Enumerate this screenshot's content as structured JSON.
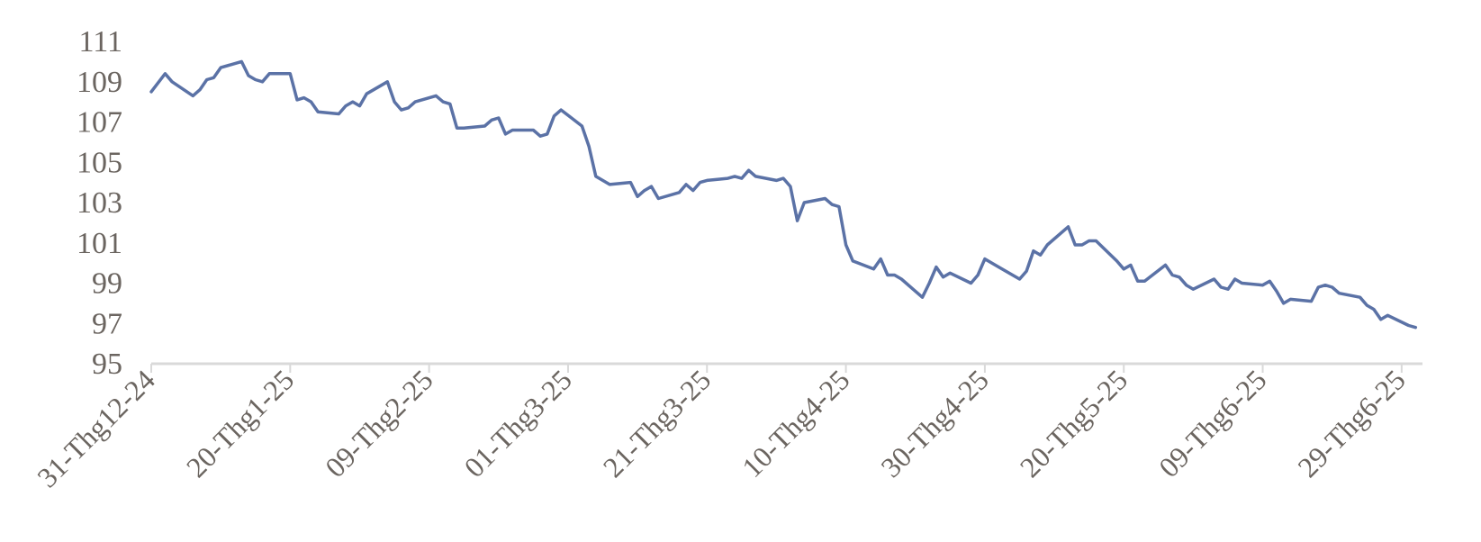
{
  "chart_data": {
    "type": "line",
    "title": "",
    "xlabel": "",
    "ylabel": "",
    "ylim": [
      95,
      111
    ],
    "y_ticks": [
      95,
      97,
      99,
      101,
      103,
      105,
      107,
      109,
      111
    ],
    "x_range": [
      "2024-12-31",
      "2025-07-02"
    ],
    "x_tick_dates": [
      "2024-12-31",
      "2025-01-20",
      "2025-02-09",
      "2025-03-01",
      "2025-03-21",
      "2025-04-10",
      "2025-04-30",
      "2025-05-20",
      "2025-06-09",
      "2025-06-29"
    ],
    "x_tick_labels": [
      "31-Thg12-24",
      "20-Thg1-25",
      "09-Thg2-25",
      "01-Thg3-25",
      "21-Thg3-25",
      "10-Thg4-25",
      "30-Thg4-25",
      "20-Thg5-25",
      "09-Thg6-25",
      "29-Thg6-25"
    ],
    "grid": false,
    "colors": {
      "line": "#5b72a6",
      "axis": "#d9d9d9",
      "text": "#6b6560"
    },
    "series": [
      {
        "x": [
          "2024-12-31",
          "2025-01-02",
          "2025-01-03",
          "2025-01-06",
          "2025-01-07",
          "2025-01-08",
          "2025-01-09",
          "2025-01-10",
          "2025-01-13",
          "2025-01-14",
          "2025-01-15",
          "2025-01-16",
          "2025-01-17",
          "2025-01-20",
          "2025-01-21",
          "2025-01-22",
          "2025-01-23",
          "2025-01-24",
          "2025-01-27",
          "2025-01-28",
          "2025-01-29",
          "2025-01-30",
          "2025-01-31",
          "2025-02-03",
          "2025-02-04",
          "2025-02-05",
          "2025-02-06",
          "2025-02-07",
          "2025-02-10",
          "2025-02-11",
          "2025-02-12",
          "2025-02-13",
          "2025-02-14",
          "2025-02-17",
          "2025-02-18",
          "2025-02-19",
          "2025-02-20",
          "2025-02-21",
          "2025-02-24",
          "2025-02-25",
          "2025-02-26",
          "2025-02-27",
          "2025-02-28",
          "2025-03-03",
          "2025-03-04",
          "2025-03-05",
          "2025-03-06",
          "2025-03-07",
          "2025-03-10",
          "2025-03-11",
          "2025-03-12",
          "2025-03-13",
          "2025-03-14",
          "2025-03-17",
          "2025-03-18",
          "2025-03-19",
          "2025-03-20",
          "2025-03-21",
          "2025-03-24",
          "2025-03-25",
          "2025-03-26",
          "2025-03-27",
          "2025-03-28",
          "2025-03-31",
          "2025-04-01",
          "2025-04-02",
          "2025-04-03",
          "2025-04-04",
          "2025-04-07",
          "2025-04-08",
          "2025-04-09",
          "2025-04-10",
          "2025-04-11",
          "2025-04-14",
          "2025-04-15",
          "2025-04-16",
          "2025-04-17",
          "2025-04-18",
          "2025-04-21",
          "2025-04-22",
          "2025-04-23",
          "2025-04-24",
          "2025-04-25",
          "2025-04-28",
          "2025-04-29",
          "2025-04-30",
          "2025-05-01",
          "2025-05-02",
          "2025-05-05",
          "2025-05-06",
          "2025-05-07",
          "2025-05-08",
          "2025-05-09",
          "2025-05-12",
          "2025-05-13",
          "2025-05-14",
          "2025-05-15",
          "2025-05-16",
          "2025-05-19",
          "2025-05-20",
          "2025-05-21",
          "2025-05-22",
          "2025-05-23",
          "2025-05-26",
          "2025-05-27",
          "2025-05-28",
          "2025-05-29",
          "2025-05-30",
          "2025-06-02",
          "2025-06-03",
          "2025-06-04",
          "2025-06-05",
          "2025-06-06",
          "2025-06-09",
          "2025-06-10",
          "2025-06-11",
          "2025-06-12",
          "2025-06-13",
          "2025-06-16",
          "2025-06-17",
          "2025-06-18",
          "2025-06-19",
          "2025-06-20",
          "2025-06-23",
          "2025-06-24",
          "2025-06-25",
          "2025-06-26",
          "2025-06-27",
          "2025-06-30",
          "2025-07-01"
        ],
        "values": [
          108.5,
          109.4,
          109.0,
          108.3,
          108.6,
          109.1,
          109.2,
          109.7,
          110.0,
          109.3,
          109.1,
          109.0,
          109.4,
          109.4,
          108.1,
          108.2,
          108.0,
          107.5,
          107.4,
          107.8,
          108.0,
          107.8,
          108.4,
          109.0,
          108.0,
          107.6,
          107.7,
          108.0,
          108.3,
          108.0,
          107.9,
          106.7,
          106.7,
          106.8,
          107.1,
          107.2,
          106.4,
          106.6,
          106.6,
          106.3,
          106.4,
          107.3,
          107.6,
          106.8,
          105.8,
          104.3,
          104.1,
          103.9,
          104.0,
          103.3,
          103.6,
          103.8,
          103.2,
          103.5,
          103.9,
          103.6,
          104.0,
          104.1,
          104.2,
          104.3,
          104.2,
          104.6,
          104.3,
          104.1,
          104.2,
          103.8,
          102.1,
          103.0,
          103.2,
          102.9,
          102.8,
          100.9,
          100.1,
          99.7,
          100.2,
          99.4,
          99.4,
          99.2,
          98.3,
          99.0,
          99.8,
          99.3,
          99.5,
          99.0,
          99.4,
          100.2,
          100.0,
          99.8,
          99.2,
          99.6,
          100.6,
          100.4,
          100.9,
          101.8,
          100.9,
          100.9,
          101.1,
          101.1,
          100.1,
          99.7,
          99.9,
          99.1,
          99.1,
          99.9,
          99.4,
          99.3,
          98.9,
          98.7,
          99.2,
          98.8,
          98.7,
          99.2,
          99.0,
          98.9,
          99.1,
          98.6,
          98.0,
          98.2,
          98.1,
          98.8,
          98.9,
          98.8,
          98.5,
          98.3,
          97.9,
          97.7,
          97.2,
          97.4,
          96.9,
          96.8
        ]
      }
    ]
  }
}
